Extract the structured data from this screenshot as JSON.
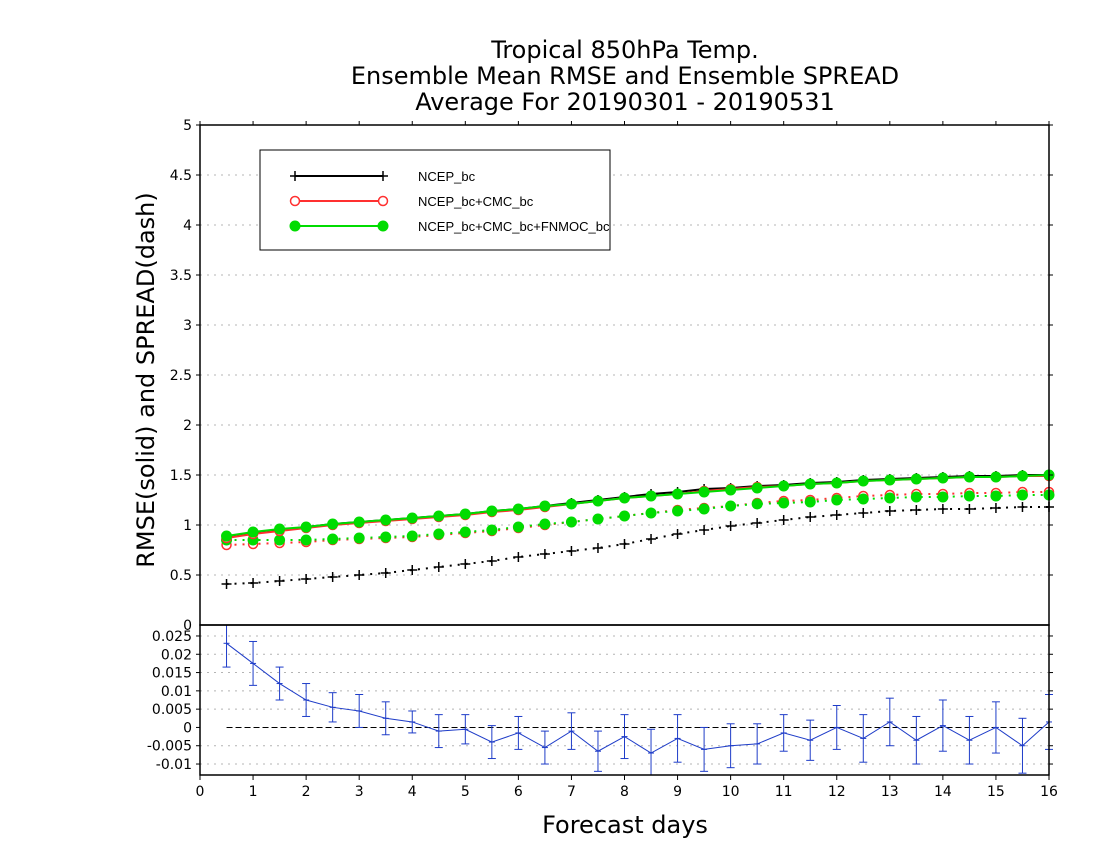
{
  "chart_data": [
    {
      "panel": "top",
      "type": "line",
      "title": [
        "Tropical 850hPa Temp.",
        "Ensemble Mean RMSE and Ensemble SPREAD",
        "Average For 20190301 - 20190531"
      ],
      "ylabel": "RMSE(solid) and SPREAD(dash)",
      "xlabel": "Forecast days",
      "xlim": [
        0,
        16
      ],
      "ylim": [
        0,
        5
      ],
      "yticks": [
        "0.5",
        "1",
        "1.5",
        "2",
        "2.5",
        "3",
        "3.5",
        "4",
        "4.5",
        "5"
      ],
      "xticks": [
        "0",
        "1",
        "2",
        "3",
        "4",
        "5",
        "6",
        "7",
        "8",
        "9",
        "10",
        "11",
        "12",
        "13",
        "14",
        "15",
        "16"
      ],
      "grid": true,
      "legend_position": "top-left",
      "x": [
        0.5,
        1,
        1.5,
        2,
        2.5,
        3,
        3.5,
        4,
        4.5,
        5,
        5.5,
        6,
        6.5,
        7,
        7.5,
        8,
        8.5,
        9,
        9.5,
        10,
        10.5,
        11,
        11.5,
        12,
        12.5,
        13,
        13.5,
        14,
        14.5,
        15,
        15.5,
        16
      ],
      "series": [
        {
          "name": "NCEP_bc",
          "color": "#000000",
          "marker": "plus",
          "rmse": [
            0.88,
            0.92,
            0.95,
            0.98,
            1.01,
            1.03,
            1.05,
            1.07,
            1.09,
            1.11,
            1.14,
            1.16,
            1.19,
            1.22,
            1.25,
            1.28,
            1.31,
            1.33,
            1.36,
            1.37,
            1.39,
            1.4,
            1.42,
            1.43,
            1.45,
            1.46,
            1.47,
            1.48,
            1.49,
            1.49,
            1.5,
            1.5
          ],
          "spread": [
            0.41,
            0.42,
            0.44,
            0.46,
            0.48,
            0.5,
            0.52,
            0.55,
            0.58,
            0.61,
            0.64,
            0.68,
            0.71,
            0.74,
            0.77,
            0.81,
            0.86,
            0.91,
            0.95,
            0.99,
            1.02,
            1.05,
            1.08,
            1.1,
            1.12,
            1.14,
            1.15,
            1.16,
            1.16,
            1.17,
            1.18,
            1.18
          ]
        },
        {
          "name": "NCEP_bc+CMC_bc",
          "color": "#ff3030",
          "marker": "open-circle",
          "rmse": [
            0.87,
            0.91,
            0.94,
            0.97,
            1.0,
            1.02,
            1.04,
            1.06,
            1.08,
            1.1,
            1.13,
            1.15,
            1.18,
            1.21,
            1.24,
            1.27,
            1.29,
            1.31,
            1.34,
            1.36,
            1.38,
            1.39,
            1.41,
            1.42,
            1.44,
            1.45,
            1.46,
            1.47,
            1.48,
            1.48,
            1.49,
            1.49
          ],
          "spread": [
            0.8,
            0.81,
            0.82,
            0.83,
            0.85,
            0.86,
            0.87,
            0.88,
            0.9,
            0.92,
            0.94,
            0.97,
            1.0,
            1.03,
            1.06,
            1.09,
            1.12,
            1.15,
            1.17,
            1.19,
            1.22,
            1.24,
            1.25,
            1.27,
            1.29,
            1.3,
            1.31,
            1.31,
            1.32,
            1.32,
            1.33,
            1.33
          ]
        },
        {
          "name": "NCEP_bc+CMC_bc+FNMOC_bc",
          "color": "#00dc00",
          "marker": "filled-circle",
          "rmse": [
            0.89,
            0.93,
            0.96,
            0.98,
            1.01,
            1.03,
            1.05,
            1.07,
            1.09,
            1.11,
            1.14,
            1.16,
            1.19,
            1.21,
            1.24,
            1.27,
            1.29,
            1.31,
            1.33,
            1.35,
            1.37,
            1.39,
            1.41,
            1.42,
            1.44,
            1.45,
            1.46,
            1.47,
            1.48,
            1.48,
            1.49,
            1.5
          ],
          "spread": [
            0.85,
            0.85,
            0.85,
            0.85,
            0.86,
            0.87,
            0.88,
            0.89,
            0.91,
            0.93,
            0.95,
            0.98,
            1.01,
            1.03,
            1.06,
            1.09,
            1.12,
            1.14,
            1.16,
            1.19,
            1.21,
            1.22,
            1.23,
            1.25,
            1.26,
            1.27,
            1.28,
            1.28,
            1.29,
            1.29,
            1.3,
            1.3
          ]
        }
      ]
    },
    {
      "panel": "bottom",
      "type": "line",
      "xlim": [
        0,
        16
      ],
      "ylim": [
        -0.013,
        0.028
      ],
      "yticks": [
        "-0.01",
        "-0.005",
        "0",
        "0.005",
        "0.01",
        "0.015",
        "0.02",
        "0.025"
      ],
      "zero_label": "0",
      "color": "#1e3cc8",
      "x": [
        0.5,
        1,
        1.5,
        2,
        2.5,
        3,
        3.5,
        4,
        4.5,
        5,
        5.5,
        6,
        6.5,
        7,
        7.5,
        8,
        8.5,
        9,
        9.5,
        10,
        10.5,
        11,
        11.5,
        12,
        12.5,
        13,
        13.5,
        14,
        14.5,
        15,
        15.5,
        16
      ],
      "values": [
        0.023,
        0.0175,
        0.012,
        0.0075,
        0.0055,
        0.0045,
        0.0025,
        0.0015,
        -0.001,
        -0.0005,
        -0.004,
        -0.0015,
        -0.0055,
        -0.001,
        -0.0065,
        -0.0025,
        -0.007,
        -0.003,
        -0.006,
        -0.005,
        -0.0045,
        -0.0015,
        -0.0035,
        0.0,
        -0.003,
        0.0015,
        -0.0035,
        0.0005,
        -0.0035,
        0.0,
        -0.005,
        0.0015
      ],
      "err": [
        0.0065,
        0.006,
        0.0045,
        0.0045,
        0.004,
        0.0045,
        0.0045,
        0.003,
        0.0045,
        0.004,
        0.0045,
        0.0045,
        0.0045,
        0.005,
        0.0055,
        0.006,
        0.0065,
        0.0065,
        0.006,
        0.006,
        0.0055,
        0.005,
        0.0055,
        0.006,
        0.0065,
        0.0065,
        0.0065,
        0.007,
        0.0065,
        0.007,
        0.0075,
        0.0075
      ]
    }
  ]
}
